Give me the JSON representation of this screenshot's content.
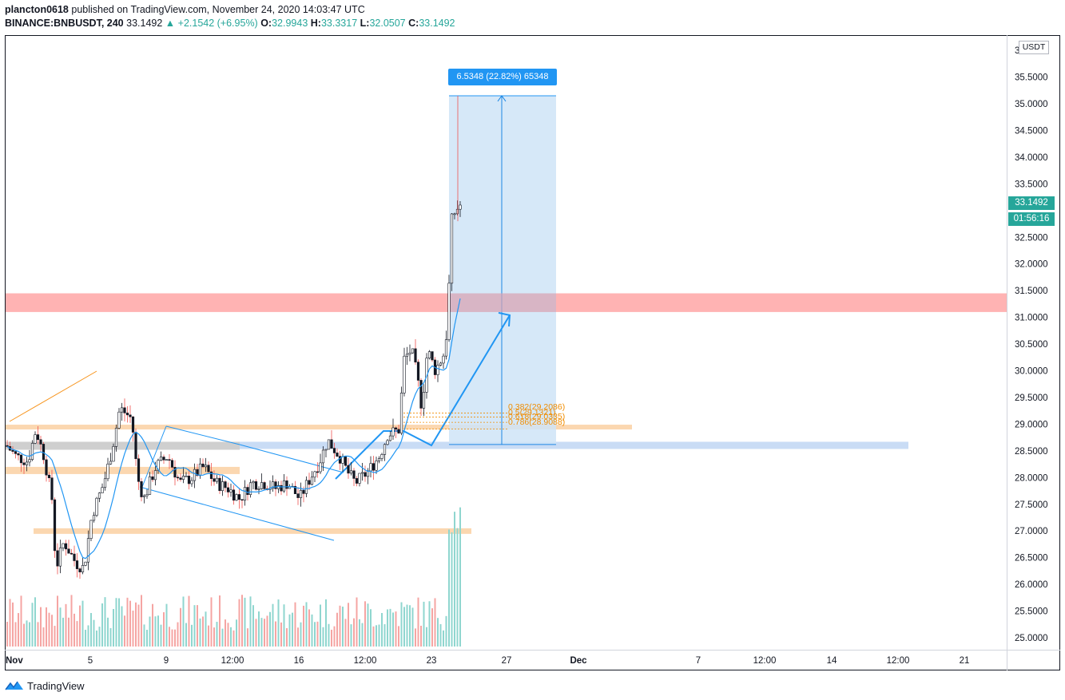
{
  "header": {
    "author": "plancton0618",
    "published_text": " published on TradingView.com, November 24, 2020 14:03:47 UTC",
    "symbol": "BINANCE:BNBUSDT, 240",
    "last_price": "33.1492",
    "change": "▲ +2.1542 (+6.95%)",
    "o_label": "O:",
    "o_value": "32.9943",
    "h_label": "H:",
    "h_value": "33.3317",
    "l_label": "L:",
    "l_value": "32.0507",
    "c_label": "C:",
    "c_value": "33.1492"
  },
  "price_axis": {
    "unit": "USDT",
    "ticks": [
      "35.5000",
      "35.0000",
      "34.5000",
      "34.0000",
      "33.5000",
      "32.5000",
      "32.0000",
      "31.5000",
      "31.0000",
      "30.5000",
      "30.0000",
      "29.5000",
      "29.0000",
      "28.5000",
      "28.0000",
      "27.5000",
      "27.0000",
      "26.5000",
      "26.0000",
      "25.5000",
      "25.0000"
    ],
    "top_partial_label": "3",
    "current_price_tag": "33.1492",
    "countdown_tag": "01:56:16"
  },
  "time_axis": {
    "ticks": [
      "Nov",
      "5",
      "9",
      "12:00",
      "16",
      "12:00",
      "23",
      "27",
      "Dec",
      "7",
      "12:00",
      "14",
      "12:00",
      "21"
    ]
  },
  "measure_label": "6.5348 (22.82%) 65348",
  "fib_labels": [
    "0.382(29.2086)",
    "0.5(29.1321)",
    "0.618(29.0335)",
    "0.786(28.9088)"
  ],
  "branding": {
    "name": "TradingView"
  },
  "colors": {
    "up": "#26a69a",
    "down": "#ef5350",
    "candle_body": "#131722",
    "accent_blue": "#2196f3",
    "resistance_zone": "#ffb3b3",
    "support_zone": "#fbd7b0",
    "measure_fill": "#cfe4f7",
    "fib": "#f08c00"
  },
  "chart_data": {
    "type": "candlestick",
    "symbol": "BINANCE:BNBUSDT",
    "interval": "240",
    "ylim": [
      24.9,
      36.0
    ],
    "price_range": {
      "low": 25.9,
      "high": 35.15
    },
    "key_levels": {
      "resistance_zone": [
        31.1,
        31.45
      ],
      "support_zones": [
        [
          28.92,
          28.99
        ],
        [
          28.1,
          28.2
        ],
        [
          26.96,
          27.05
        ]
      ],
      "demand_zone": [
        28.56,
        28.67
      ],
      "gray_zone": [
        28.53,
        28.67
      ]
    },
    "measure": {
      "from": 28.62,
      "to": 35.15,
      "delta": 6.5348,
      "percent": 22.82
    },
    "fibonacci": [
      {
        "ratio": 0.382,
        "price": 29.2086
      },
      {
        "ratio": 0.5,
        "price": 29.1321
      },
      {
        "ratio": 0.618,
        "price": 29.0335
      },
      {
        "ratio": 0.786,
        "price": 28.9088
      }
    ],
    "projection_target": 31.1
  }
}
